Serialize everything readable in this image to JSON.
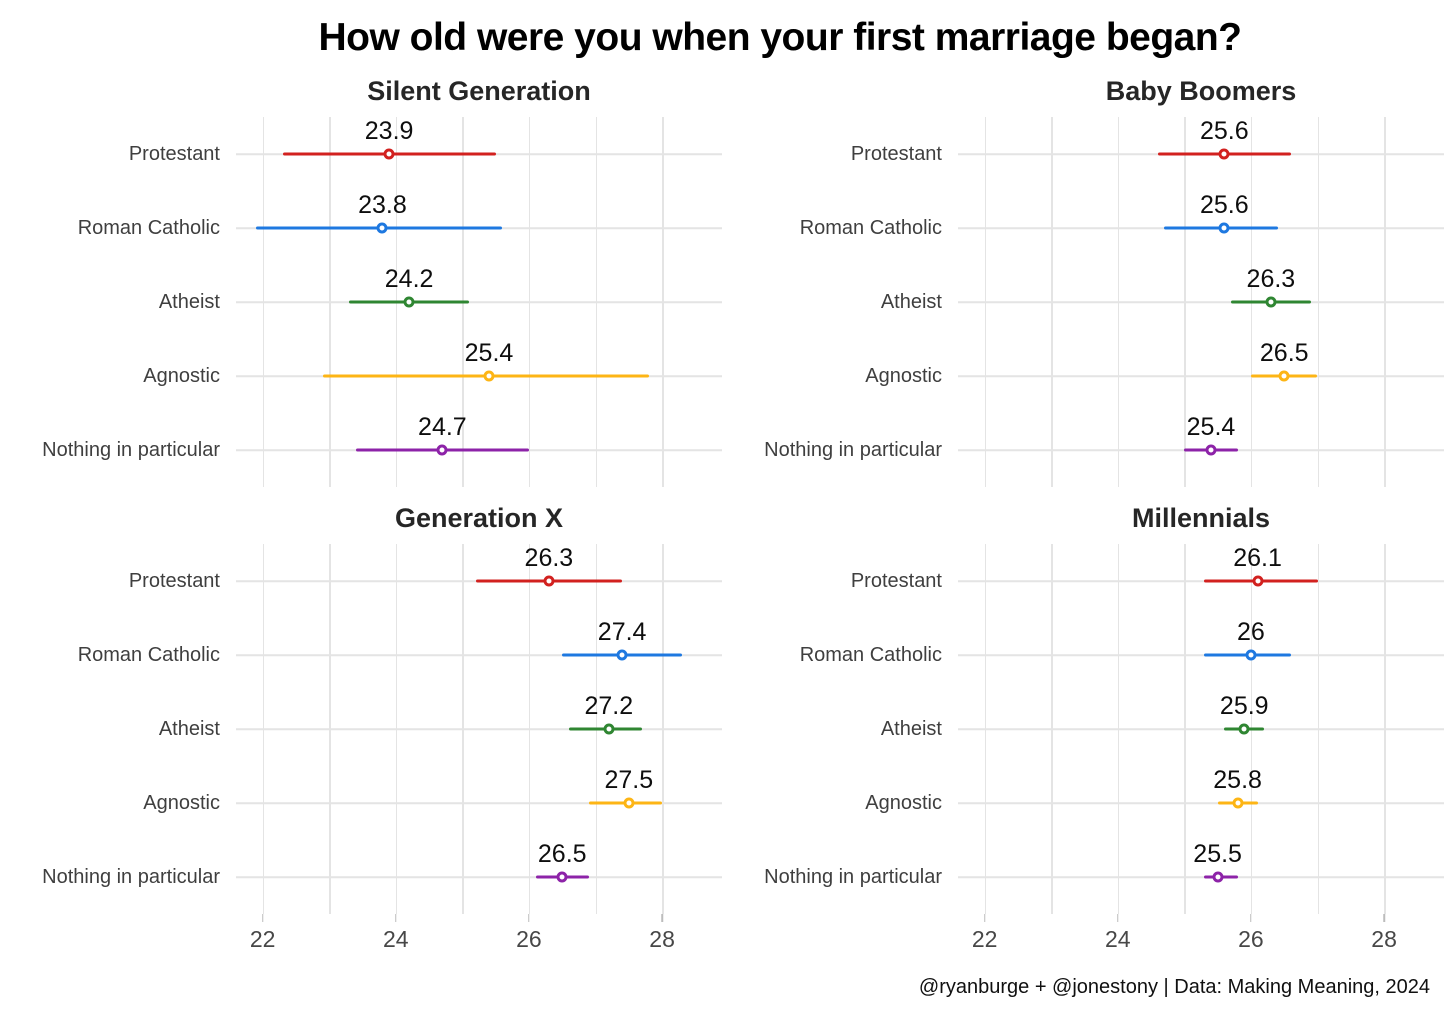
{
  "title": "How old were you when your first marriage began?",
  "credit": "@ryanburge + @jonestony | Data: Making Meaning, 2024",
  "chart_data": {
    "type": "scatter",
    "subtype": "dot-with-error-bars",
    "title": "How old were you when your first marriage began?",
    "x_axis": {
      "range": [
        21.6,
        28.9
      ],
      "ticks": [
        22,
        24,
        26,
        28
      ],
      "gridlines": [
        22,
        23,
        24,
        25,
        26,
        27,
        28
      ]
    },
    "grid": "on",
    "legend": "none",
    "categories": [
      {
        "label": "Protestant",
        "color": "#d2211f"
      },
      {
        "label": "Roman Catholic",
        "color": "#1e78e0"
      },
      {
        "label": "Atheist",
        "color": "#2f8632"
      },
      {
        "label": "Agnostic",
        "color": "#fdb515"
      },
      {
        "label": "Nothing in particular",
        "color": "#8d23a8"
      }
    ],
    "panels": [
      {
        "title": "Silent Generation",
        "points": [
          {
            "label": "23.9",
            "value": 23.9,
            "ci": [
              22.3,
              25.5
            ]
          },
          {
            "label": "23.8",
            "value": 23.8,
            "ci": [
              21.9,
              25.6
            ]
          },
          {
            "label": "24.2",
            "value": 24.2,
            "ci": [
              23.3,
              25.1
            ]
          },
          {
            "label": "25.4",
            "value": 25.4,
            "ci": [
              22.9,
              27.8
            ]
          },
          {
            "label": "24.7",
            "value": 24.7,
            "ci": [
              23.4,
              26.0
            ]
          }
        ]
      },
      {
        "title": "Baby Boomers",
        "points": [
          {
            "label": "25.6",
            "value": 25.6,
            "ci": [
              24.6,
              26.6
            ]
          },
          {
            "label": "25.6",
            "value": 25.6,
            "ci": [
              24.7,
              26.4
            ]
          },
          {
            "label": "26.3",
            "value": 26.3,
            "ci": [
              25.7,
              26.9
            ]
          },
          {
            "label": "26.5",
            "value": 26.5,
            "ci": [
              26.0,
              27.0
            ]
          },
          {
            "label": "25.4",
            "value": 25.4,
            "ci": [
              25.0,
              25.8
            ]
          }
        ]
      },
      {
        "title": "Generation X",
        "points": [
          {
            "label": "26.3",
            "value": 26.3,
            "ci": [
              25.2,
              27.4
            ]
          },
          {
            "label": "27.4",
            "value": 27.4,
            "ci": [
              26.5,
              28.3
            ]
          },
          {
            "label": "27.2",
            "value": 27.2,
            "ci": [
              26.6,
              27.7
            ]
          },
          {
            "label": "27.5",
            "value": 27.5,
            "ci": [
              26.9,
              28.0
            ]
          },
          {
            "label": "26.5",
            "value": 26.5,
            "ci": [
              26.1,
              26.9
            ]
          }
        ]
      },
      {
        "title": "Millennials",
        "points": [
          {
            "label": "26.1",
            "value": 26.1,
            "ci": [
              25.3,
              27.0
            ]
          },
          {
            "label": "26",
            "value": 26.0,
            "ci": [
              25.3,
              26.6
            ]
          },
          {
            "label": "25.9",
            "value": 25.9,
            "ci": [
              25.6,
              26.2
            ]
          },
          {
            "label": "25.8",
            "value": 25.8,
            "ci": [
              25.5,
              26.1
            ]
          },
          {
            "label": "25.5",
            "value": 25.5,
            "ci": [
              25.3,
              25.8
            ]
          }
        ]
      }
    ]
  }
}
